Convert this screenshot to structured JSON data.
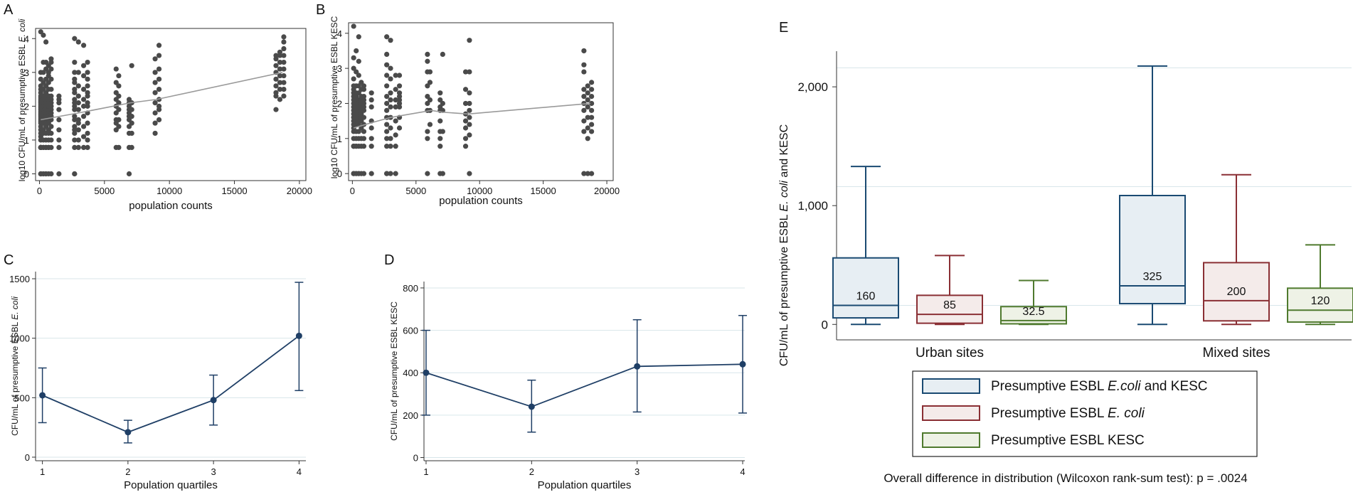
{
  "colors": {
    "dots": "#4a4a4a",
    "fit_line": "#9a9a9a",
    "line_cd": "#1f3f66",
    "grid": "#d8e6ea",
    "box_blue": "#1a4a72",
    "fill_blue": "#e7eef3",
    "box_red": "#8a2f34",
    "fill_red": "#f4ebea",
    "box_green": "#4f7a2e",
    "fill_green": "#eef2e6"
  },
  "chart_data": [
    {
      "id": "A",
      "type": "scatter",
      "panel_label": "A",
      "xlabel": "population counts",
      "ylabel_prefix": "log10 CFU/mL of presumptive ESBL ",
      "ylabel_italic": "E. coli",
      "xlim": [
        -300,
        20500
      ],
      "ylim": [
        -0.2,
        4.3
      ],
      "xticks": [
        0,
        5000,
        10000,
        15000,
        20000
      ],
      "xtick_labels": [
        "0",
        "5000",
        "10000",
        "15000",
        "20000"
      ],
      "yticks": [
        0,
        1,
        2,
        3,
        4
      ],
      "ytick_labels": [
        "0",
        "1",
        "2",
        "3",
        "4"
      ],
      "columns": [
        {
          "x": 100,
          "y": [
            0,
            0,
            0,
            0.78,
            0.78,
            0.78,
            0.78,
            0.78,
            1.0,
            1.1,
            1.2,
            1.3,
            1.4,
            1.5,
            1.55,
            1.6,
            1.65,
            1.7,
            1.75,
            1.8,
            1.85,
            1.9,
            1.95,
            2.0,
            2.05,
            2.1,
            2.15,
            2.2,
            2.25,
            2.3,
            2.4,
            2.5,
            2.6,
            2.8,
            3.0,
            4.2
          ]
        },
        {
          "x": 300,
          "y": [
            0,
            0,
            0.78,
            0.78,
            1.0,
            1.2,
            1.3,
            1.5,
            1.6,
            1.7,
            1.8,
            1.9,
            2.0,
            2.1,
            2.2,
            2.3,
            2.5,
            2.7,
            3.0,
            3.3,
            4.1
          ]
        },
        {
          "x": 500,
          "y": [
            0,
            0,
            0.78,
            0.78,
            1.0,
            1.2,
            1.4,
            1.5,
            1.6,
            1.7,
            1.8,
            1.9,
            2.0,
            2.1,
            2.2,
            2.3,
            2.4,
            2.6,
            2.8,
            3.1,
            3.3,
            3.9
          ]
        },
        {
          "x": 700,
          "y": [
            0,
            0.78,
            0.78,
            1.0,
            1.2,
            1.3,
            1.5,
            1.6,
            1.7,
            1.8,
            1.9,
            2.0,
            2.1,
            2.2,
            2.3,
            2.5,
            2.7,
            2.9,
            3.0,
            3.2
          ]
        },
        {
          "x": 900,
          "y": [
            0,
            0.78,
            1.0,
            1.2,
            1.4,
            1.6,
            1.7,
            1.8,
            1.9,
            2.0,
            2.1,
            2.2,
            2.3,
            2.5,
            2.8,
            3.1,
            3.3,
            3.4
          ]
        },
        {
          "x": 1500,
          "y": [
            0,
            0.78,
            1.0,
            1.3,
            1.6,
            1.9,
            2.1,
            2.2,
            2.3
          ]
        },
        {
          "x": 2700,
          "y": [
            0,
            0,
            0.78,
            1.0,
            1.2,
            1.3,
            1.4,
            1.6,
            1.7,
            1.9,
            2.0,
            2.1,
            2.2,
            2.4,
            2.5,
            2.7,
            2.8,
            3.0,
            3.3,
            4.0
          ]
        },
        {
          "x": 3000,
          "y": [
            0.78,
            1.0,
            1.3,
            1.5,
            1.6,
            1.9,
            2.1,
            2.3,
            2.6,
            3.0,
            3.9
          ]
        },
        {
          "x": 3400,
          "y": [
            0.78,
            1.1,
            1.4,
            1.7,
            2.0,
            2.2,
            2.5,
            2.9,
            3.2,
            3.8
          ]
        },
        {
          "x": 3700,
          "y": [
            0.78,
            1.0,
            1.2,
            1.5,
            1.8,
            2.0,
            2.1,
            2.3,
            2.4,
            2.6,
            2.8,
            3.0,
            3.3
          ]
        },
        {
          "x": 5900,
          "y": [
            0.78,
            1.3,
            1.5,
            1.6,
            1.8,
            2.0,
            2.2,
            2.4,
            2.7,
            3.1
          ]
        },
        {
          "x": 6100,
          "y": [
            0.78,
            1.4,
            1.6,
            1.9,
            2.1,
            2.3,
            2.6,
            2.9
          ]
        },
        {
          "x": 6900,
          "y": [
            0,
            0.78,
            1.2,
            1.4,
            1.6,
            1.7,
            1.8,
            1.9,
            2.0,
            2.1,
            2.2
          ]
        },
        {
          "x": 7100,
          "y": [
            0.78,
            1.2,
            1.5,
            1.7,
            1.9,
            2.1,
            3.2
          ]
        },
        {
          "x": 8900,
          "y": [
            1.2,
            1.5,
            1.8,
            2.1,
            2.4,
            2.7,
            3.0,
            3.4
          ]
        },
        {
          "x": 9200,
          "y": [
            1.6,
            1.9,
            2.0,
            2.2,
            2.5,
            2.8,
            3.1,
            3.5,
            3.8
          ]
        },
        {
          "x": 18200,
          "y": [
            1.9,
            2.3,
            2.4,
            2.6,
            2.8,
            3.0,
            3.2,
            3.4,
            3.5
          ]
        },
        {
          "x": 18500,
          "y": [
            2.2,
            2.5,
            2.7,
            2.9,
            3.1,
            3.3,
            3.5,
            3.6
          ]
        },
        {
          "x": 18800,
          "y": [
            2.3,
            2.5,
            2.7,
            2.9,
            3.1,
            3.3,
            3.5,
            3.7,
            3.9,
            4.05
          ]
        }
      ],
      "fit": {
        "x": [
          100,
          3000,
          7000,
          9000,
          18700
        ],
        "y": [
          1.6,
          1.8,
          2.1,
          2.2,
          3.0
        ]
      }
    },
    {
      "id": "B",
      "type": "scatter",
      "panel_label": "B",
      "xlabel": "population counts",
      "ylabel_prefix": "log10 CFU/mL of presumptive ESBL KESC",
      "ylabel_italic": "",
      "xlim": [
        -300,
        20500
      ],
      "ylim": [
        -0.2,
        4.3
      ],
      "xticks": [
        0,
        5000,
        10000,
        15000,
        20000
      ],
      "xtick_labels": [
        "0",
        "5000",
        "10000",
        "15000",
        "20000"
      ],
      "yticks": [
        0,
        1,
        2,
        3,
        4
      ],
      "ytick_labels": [
        "0",
        "1",
        "2",
        "3",
        "4"
      ],
      "columns": [
        {
          "x": 100,
          "y": [
            0,
            0,
            0,
            0.78,
            0.78,
            0.78,
            1.0,
            1.2,
            1.3,
            1.4,
            1.5,
            1.6,
            1.7,
            1.8,
            1.9,
            2.0,
            2.1,
            2.2,
            2.3,
            2.4,
            2.5,
            2.7,
            3.0,
            3.3,
            4.2
          ]
        },
        {
          "x": 300,
          "y": [
            0,
            0,
            0.78,
            0.78,
            1.0,
            1.2,
            1.4,
            1.5,
            1.6,
            1.7,
            1.8,
            1.9,
            2.0,
            2.1,
            2.2,
            2.3,
            2.5,
            2.9,
            3.5
          ]
        },
        {
          "x": 500,
          "y": [
            0,
            0,
            0.78,
            1.0,
            1.2,
            1.4,
            1.5,
            1.6,
            1.7,
            1.8,
            1.9,
            2.0,
            2.1,
            2.3,
            2.5,
            2.8,
            3.2,
            3.9
          ]
        },
        {
          "x": 700,
          "y": [
            0,
            0.78,
            1.0,
            1.3,
            1.5,
            1.6,
            1.7,
            1.8,
            1.9,
            2.0,
            2.1,
            2.2,
            2.4,
            2.6
          ]
        },
        {
          "x": 900,
          "y": [
            0,
            0.78,
            1.0,
            1.2,
            1.4,
            1.6,
            1.8,
            1.9,
            2.0,
            2.1,
            2.2,
            2.4,
            2.5
          ]
        },
        {
          "x": 1500,
          "y": [
            0,
            0.78,
            1.0,
            1.3,
            1.5,
            1.9,
            2.1,
            2.3
          ]
        },
        {
          "x": 2700,
          "y": [
            0,
            0,
            0.78,
            1.0,
            1.2,
            1.4,
            1.6,
            1.8,
            2.0,
            2.2,
            2.5,
            2.8,
            3.1,
            3.4,
            3.9
          ]
        },
        {
          "x": 3000,
          "y": [
            0,
            0.78,
            1.0,
            1.3,
            1.6,
            1.9,
            2.1,
            2.3,
            2.7,
            3.0,
            3.8
          ]
        },
        {
          "x": 3400,
          "y": [
            0,
            0.78,
            1.1,
            1.5,
            1.9,
            2.1,
            2.4,
            2.8
          ]
        },
        {
          "x": 3700,
          "y": [
            1.3,
            1.6,
            1.9,
            2.0,
            2.1,
            2.2,
            2.3,
            2.5,
            2.8
          ]
        },
        {
          "x": 5900,
          "y": [
            0,
            1.0,
            1.2,
            1.8,
            2.0,
            2.2,
            2.5,
            2.9,
            3.2,
            3.4
          ]
        },
        {
          "x": 6100,
          "y": [
            1.4,
            1.8,
            2.1,
            2.6,
            2.9
          ]
        },
        {
          "x": 6900,
          "y": [
            0,
            0.78,
            1.0,
            1.2,
            1.5,
            1.8,
            1.9,
            2.1,
            2.3
          ]
        },
        {
          "x": 7100,
          "y": [
            0,
            1.2,
            1.8,
            2.0,
            3.4
          ]
        },
        {
          "x": 8900,
          "y": [
            0.78,
            1.0,
            1.3,
            1.5,
            1.7,
            2.0,
            2.4,
            2.9
          ]
        },
        {
          "x": 9200,
          "y": [
            0,
            1.1,
            1.4,
            1.6,
            1.8,
            2.0,
            2.3,
            2.9,
            3.8
          ]
        },
        {
          "x": 18200,
          "y": [
            0,
            1.2,
            1.5,
            1.8,
            2.0,
            2.2,
            2.4,
            2.9,
            3.1,
            3.5
          ]
        },
        {
          "x": 18500,
          "y": [
            0,
            1.0,
            1.3,
            1.6,
            1.9,
            2.1,
            2.3,
            2.5
          ]
        },
        {
          "x": 18800,
          "y": [
            0,
            1.2,
            1.4,
            1.6,
            1.8,
            2.0,
            2.2,
            2.4,
            2.6
          ]
        }
      ],
      "fit": {
        "x": [
          100,
          1500,
          3000,
          6200,
          7100,
          9100,
          18700
        ],
        "y": [
          1.3,
          1.45,
          1.6,
          1.8,
          1.75,
          1.7,
          2.0
        ]
      }
    },
    {
      "id": "C",
      "type": "line",
      "panel_label": "C",
      "xlabel": "Population quartiles",
      "ylabel_prefix": "CFU/mL of presumptive ESBL ",
      "ylabel_italic": "E. coli",
      "xlim": [
        0.92,
        4.08
      ],
      "ylim": [
        -30,
        1560
      ],
      "xticks": [
        1,
        2,
        3,
        4
      ],
      "xtick_labels": [
        "1",
        "2",
        "3",
        "4"
      ],
      "yticks": [
        0,
        500,
        1000,
        1500
      ],
      "ytick_labels": [
        "0",
        "500",
        "1000",
        "1500"
      ],
      "x": [
        1,
        2,
        3,
        4
      ],
      "y": [
        520,
        210,
        480,
        1020
      ],
      "lower": [
        290,
        120,
        270,
        560
      ],
      "upper": [
        750,
        310,
        690,
        1470
      ]
    },
    {
      "id": "D",
      "type": "line",
      "panel_label": "D",
      "xlabel": "Population quartiles",
      "ylabel_prefix": "CFU/mL of presumptive ESBL KESC",
      "ylabel_italic": "",
      "xlim": [
        0.98,
        4.02
      ],
      "ylim": [
        -15,
        830
      ],
      "xticks": [
        1,
        2,
        3,
        4
      ],
      "xtick_labels": [
        "1",
        "2",
        "3",
        "4"
      ],
      "yticks": [
        0,
        200,
        400,
        600,
        800
      ],
      "ytick_labels": [
        "0",
        "200",
        "400",
        "600",
        "800"
      ],
      "x": [
        1,
        2,
        3,
        4
      ],
      "y": [
        400,
        240,
        430,
        440
      ],
      "lower": [
        200,
        120,
        215,
        210
      ],
      "upper": [
        600,
        365,
        650,
        670
      ]
    },
    {
      "id": "E",
      "type": "box",
      "panel_label": "E",
      "ylabel_prefix": "CFU/mL of presumptive ESBL ",
      "ylabel_italic": "E. coli",
      "ylabel_suffix": " and KESC",
      "ylim": [
        -130,
        2300
      ],
      "yticks": [
        0,
        1000,
        2000
      ],
      "ytick_labels": [
        "0",
        "1,000",
        "2,000"
      ],
      "groups": [
        "Urban sites",
        "Mixed sites"
      ],
      "boxes": [
        {
          "group": 0,
          "series": 0,
          "min": 0,
          "q1": 55,
          "median": 160,
          "q3": 560,
          "max": 1330,
          "label": "160"
        },
        {
          "group": 0,
          "series": 1,
          "min": 0,
          "q1": 10,
          "median": 85,
          "q3": 245,
          "max": 580,
          "label": "85"
        },
        {
          "group": 0,
          "series": 2,
          "min": 0,
          "q1": 5,
          "median": 32.5,
          "q3": 150,
          "max": 370,
          "label": "32.5"
        },
        {
          "group": 1,
          "series": 0,
          "min": 0,
          "q1": 175,
          "median": 325,
          "q3": 1085,
          "max": 2175,
          "label": "325"
        },
        {
          "group": 1,
          "series": 1,
          "min": 0,
          "q1": 30,
          "median": 200,
          "q3": 520,
          "max": 1260,
          "label": "200"
        },
        {
          "group": 1,
          "series": 2,
          "min": 0,
          "q1": 20,
          "median": 120,
          "q3": 305,
          "max": 670,
          "label": "120"
        }
      ],
      "reference_lines": [
        160,
        1160,
        2160
      ],
      "legend": {
        "placement": "bottom",
        "entries": [
          {
            "prefix": "Presumptive ESBL ",
            "italic": "E.coli",
            "suffix": " and KESC"
          },
          {
            "prefix": "Presumptive ESBL ",
            "italic": "E. coli",
            "suffix": ""
          },
          {
            "prefix": "Presumptive ESBL KESC",
            "italic": "",
            "suffix": ""
          }
        ]
      },
      "note": "Overall difference in distribution (Wilcoxon rank-sum test): p = .0024"
    }
  ]
}
